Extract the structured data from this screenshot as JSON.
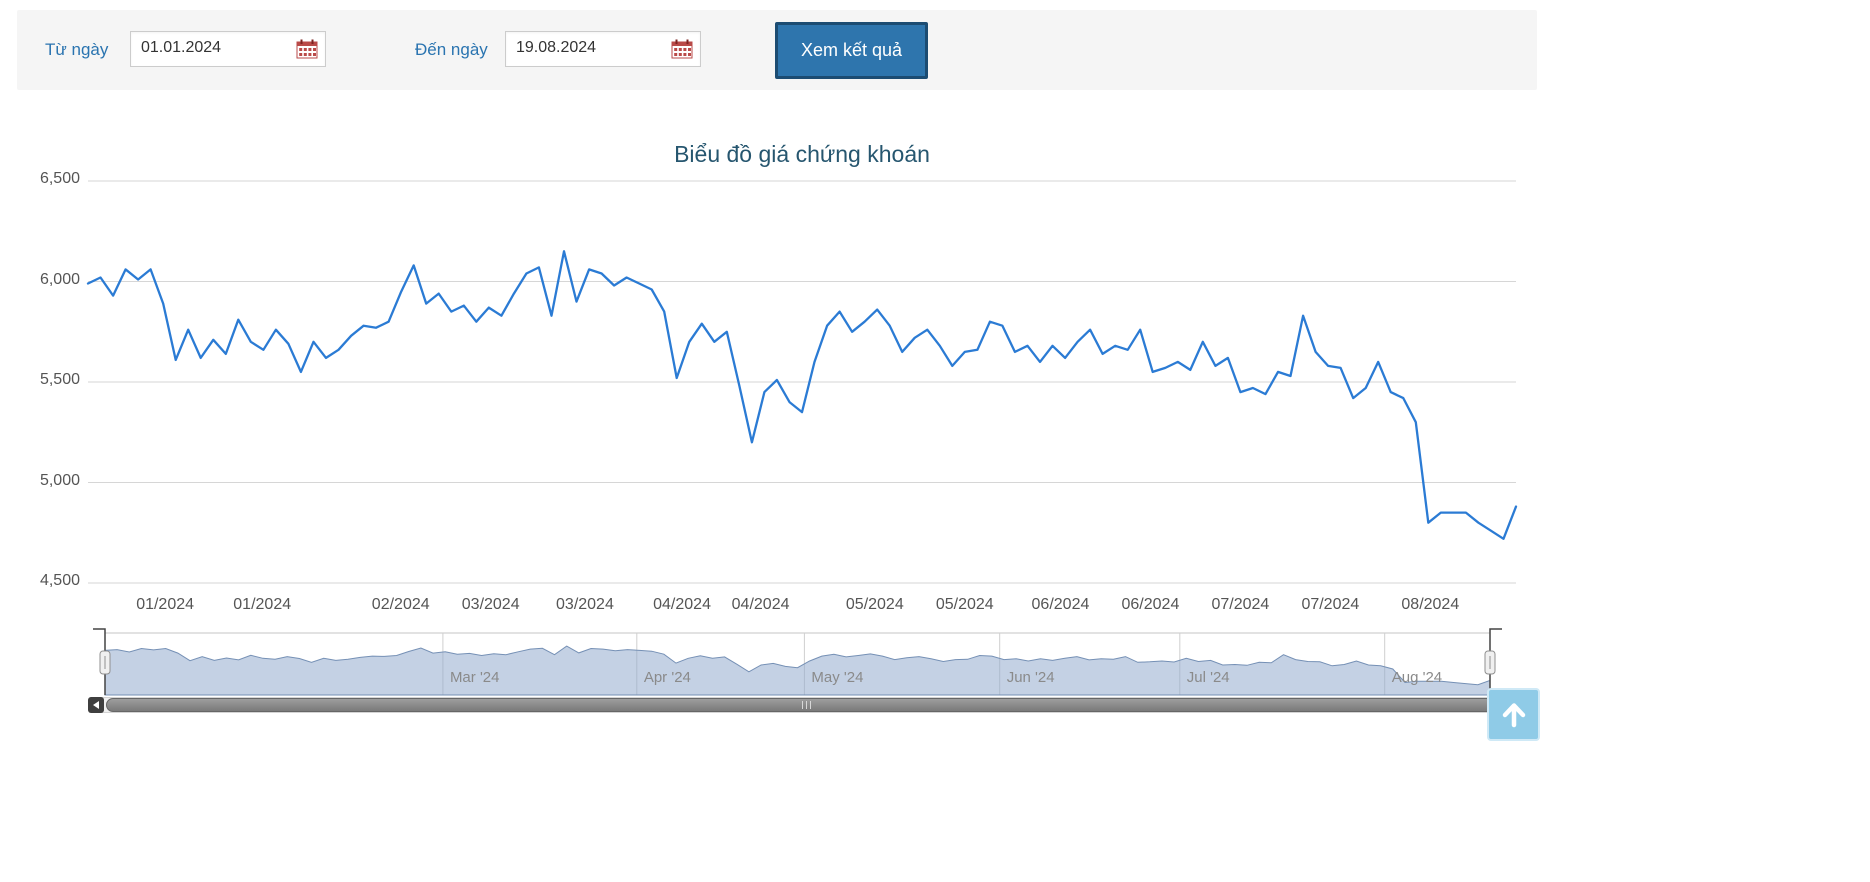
{
  "topbar": {
    "from_label": "Từ ngày",
    "from_value": "01.01.2024",
    "to_label": "Đến ngày",
    "to_value": "19.08.2024",
    "submit_label": "Xem kết quả"
  },
  "colors": {
    "accent_blue": "#2e75ad",
    "button_border": "#1c4c72",
    "label_blue": "#2a74b0",
    "title_color": "#26566f",
    "line_color": "#2b7bd4",
    "grid_color": "#d6d6d6",
    "navigator_fill": "#9fb6d4",
    "navigator_stroke": "#7590b5",
    "calendar_red": "#b94a48",
    "back_to_top_bg": "#8fcbe7"
  },
  "icons": {
    "calendar": "calendar-grid",
    "scroll_left": "left-arrow",
    "scrollbar_grip": "triple-bar",
    "back_to_top": "up-arrow"
  },
  "chart_data": {
    "type": "line",
    "title": "Biểu đồ giá chứng khoán",
    "grid": true,
    "legend": false,
    "ylim": [
      4500,
      6500
    ],
    "line_color": "#2b7bd4",
    "yticks": [
      {
        "label": "6,500",
        "value": 6500
      },
      {
        "label": "6,000",
        "value": 6000
      },
      {
        "label": "5,500",
        "value": 5500
      },
      {
        "label": "5,000",
        "value": 5000
      },
      {
        "label": "4,500",
        "value": 4500
      }
    ],
    "xticks": [
      {
        "label": "01/2024",
        "pos": 0.054
      },
      {
        "label": "01/2024",
        "pos": 0.122
      },
      {
        "label": "02/2024",
        "pos": 0.219
      },
      {
        "label": "03/2024",
        "pos": 0.282
      },
      {
        "label": "03/2024",
        "pos": 0.348
      },
      {
        "label": "04/2024",
        "pos": 0.416
      },
      {
        "label": "04/2024",
        "pos": 0.471
      },
      {
        "label": "05/2024",
        "pos": 0.551
      },
      {
        "label": "05/2024",
        "pos": 0.614
      },
      {
        "label": "06/2024",
        "pos": 0.681
      },
      {
        "label": "06/2024",
        "pos": 0.744
      },
      {
        "label": "07/2024",
        "pos": 0.807
      },
      {
        "label": "07/2024",
        "pos": 0.87
      },
      {
        "label": "08/2024",
        "pos": 0.94
      }
    ],
    "values": [
      5990,
      6020,
      5930,
      6060,
      6010,
      6060,
      5890,
      5610,
      5760,
      5620,
      5710,
      5640,
      5810,
      5700,
      5660,
      5760,
      5690,
      5550,
      5700,
      5620,
      5660,
      5730,
      5780,
      5770,
      5800,
      5950,
      6080,
      5890,
      5940,
      5850,
      5880,
      5800,
      5870,
      5830,
      5940,
      6040,
      6070,
      5830,
      6150,
      5900,
      6060,
      6040,
      5980,
      6020,
      5990,
      5960,
      5850,
      5520,
      5700,
      5790,
      5700,
      5750,
      5480,
      5200,
      5450,
      5510,
      5400,
      5350,
      5600,
      5780,
      5850,
      5750,
      5800,
      5860,
      5780,
      5650,
      5720,
      5760,
      5680,
      5580,
      5650,
      5660,
      5800,
      5780,
      5650,
      5680,
      5600,
      5680,
      5620,
      5700,
      5760,
      5640,
      5680,
      5660,
      5760,
      5550,
      5570,
      5600,
      5560,
      5700,
      5580,
      5620,
      5450,
      5470,
      5440,
      5550,
      5530,
      5830,
      5650,
      5580,
      5570,
      5420,
      5470,
      5600,
      5450,
      5420,
      5300,
      4800,
      4850,
      4850,
      4850,
      4800,
      4760,
      4720,
      4880
    ],
    "navigator": {
      "labels": [
        {
          "label": "Mar '24",
          "pos": 0.244
        },
        {
          "label": "Apr '24",
          "pos": 0.384
        },
        {
          "label": "May '24",
          "pos": 0.505
        },
        {
          "label": "Jun '24",
          "pos": 0.646
        },
        {
          "label": "Jul '24",
          "pos": 0.776
        },
        {
          "label": "Aug '24",
          "pos": 0.924
        }
      ]
    }
  }
}
